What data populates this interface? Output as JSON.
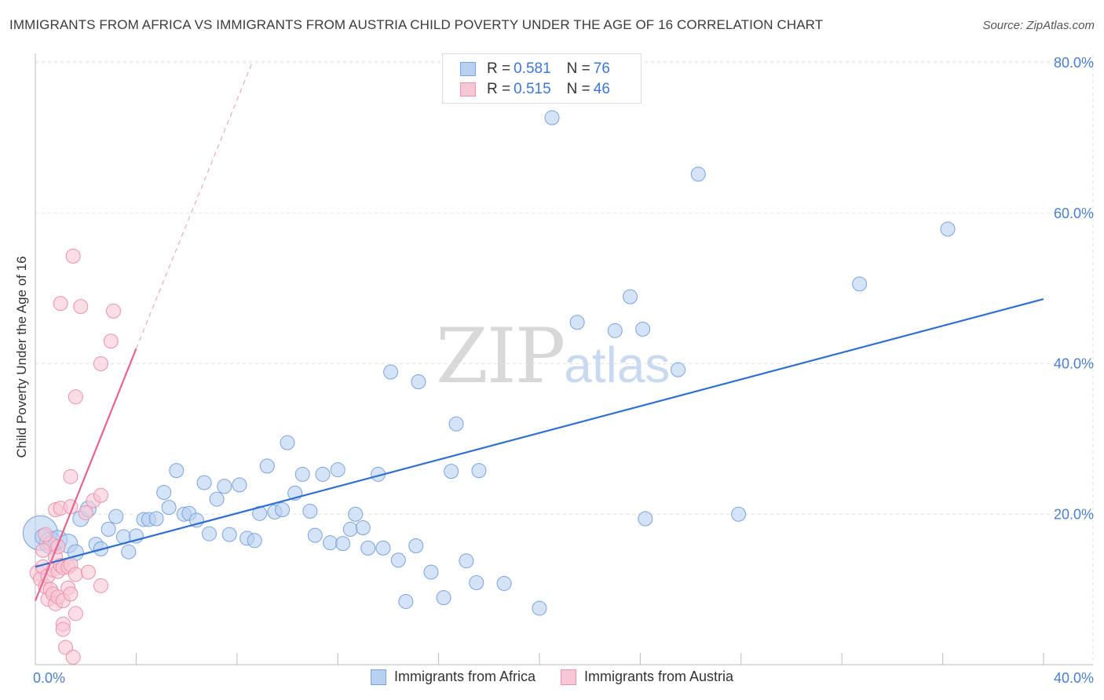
{
  "header": {
    "title": "IMMIGRANTS FROM AFRICA VS IMMIGRANTS FROM AUSTRIA CHILD POVERTY UNDER THE AGE OF 16 CORRELATION CHART",
    "source": "Source: ZipAtlas.com"
  },
  "watermark": {
    "zip": "ZIP",
    "atlas": "atlas"
  },
  "legend": {
    "africa": {
      "r_label": "R = ",
      "r_value": "0.581",
      "n_label": "N = ",
      "n_value": "76"
    },
    "austria": {
      "r_label": "R = ",
      "r_value": "0.515",
      "n_label": "N = ",
      "n_value": "46"
    }
  },
  "colors": {
    "africa_fill": "#b9d1f1",
    "africa_stroke": "#7aa3df",
    "africa_line": "#2f6fd0",
    "austria_fill": "#f8c7d6",
    "austria_stroke": "#ec92ae",
    "austria_line": "#e8638e",
    "tick": "#4a7fd4"
  },
  "chart_data": {
    "type": "scatter",
    "title": "IMMIGRANTS FROM AFRICA VS IMMIGRANTS FROM AUSTRIA CHILD POVERTY UNDER THE AGE OF 16 CORRELATION CHART",
    "xlabel": "",
    "ylabel": "Child Poverty Under the Age of 16",
    "xlim": [
      0,
      42
    ],
    "ylim": [
      0,
      83
    ],
    "x_ticks": [
      {
        "value": 0,
        "label": "0.0%"
      },
      {
        "value": 40,
        "label": "40.0%"
      }
    ],
    "y_ticks": [
      {
        "value": 20,
        "label": "20.0%"
      },
      {
        "value": 40,
        "label": "40.0%"
      },
      {
        "value": 60,
        "label": "60.0%"
      },
      {
        "value": 80,
        "label": "80.0%"
      }
    ],
    "grid": true,
    "series": [
      {
        "name": "Immigrants from Africa",
        "trend": {
          "x0": 0,
          "y0": 13.0,
          "x1": 40,
          "y1": 48.6,
          "dashed_extension": false
        },
        "points": [
          [
            0.2,
            17.5,
            22
          ],
          [
            0.6,
            16.2,
            14
          ],
          [
            0.9,
            16.6,
            12
          ],
          [
            1.3,
            16.1,
            12
          ],
          [
            1.6,
            14.9,
            10
          ],
          [
            1.8,
            19.4,
            10
          ],
          [
            2.1,
            20.7,
            10
          ],
          [
            2.4,
            16.0,
            9
          ],
          [
            2.6,
            15.4,
            9
          ],
          [
            3.2,
            19.7,
            9
          ],
          [
            2.9,
            18.0,
            9
          ],
          [
            3.5,
            17.0,
            9
          ],
          [
            3.7,
            15.0,
            9
          ],
          [
            4.0,
            17.1,
            9
          ],
          [
            4.3,
            19.3,
            9
          ],
          [
            4.5,
            19.3,
            9
          ],
          [
            4.8,
            19.4,
            9
          ],
          [
            5.1,
            22.9,
            9
          ],
          [
            5.3,
            20.9,
            9
          ],
          [
            5.6,
            25.8,
            9
          ],
          [
            5.9,
            20.0,
            9
          ],
          [
            6.1,
            20.1,
            9
          ],
          [
            6.4,
            19.2,
            9
          ],
          [
            6.7,
            24.2,
            9
          ],
          [
            6.9,
            17.4,
            9
          ],
          [
            7.2,
            22.0,
            9
          ],
          [
            7.5,
            23.7,
            9
          ],
          [
            7.7,
            17.3,
            9
          ],
          [
            8.1,
            23.9,
            9
          ],
          [
            8.4,
            16.8,
            9
          ],
          [
            8.7,
            16.5,
            9
          ],
          [
            8.9,
            20.1,
            9
          ],
          [
            9.2,
            26.4,
            9
          ],
          [
            9.5,
            20.3,
            9
          ],
          [
            9.8,
            20.6,
            9
          ],
          [
            10.0,
            29.5,
            9
          ],
          [
            10.3,
            22.8,
            9
          ],
          [
            10.6,
            25.3,
            9
          ],
          [
            10.9,
            20.4,
            9
          ],
          [
            11.1,
            17.2,
            9
          ],
          [
            11.4,
            25.3,
            9
          ],
          [
            11.7,
            16.2,
            9
          ],
          [
            12.0,
            25.9,
            9
          ],
          [
            12.2,
            16.1,
            9
          ],
          [
            12.5,
            18.0,
            9
          ],
          [
            12.7,
            20.0,
            9
          ],
          [
            13.0,
            18.2,
            9
          ],
          [
            13.2,
            15.5,
            9
          ],
          [
            13.6,
            25.3,
            9
          ],
          [
            13.8,
            15.5,
            9
          ],
          [
            14.1,
            38.9,
            9
          ],
          [
            14.7,
            8.4,
            9
          ],
          [
            14.4,
            13.9,
            9
          ],
          [
            15.1,
            15.8,
            9
          ],
          [
            15.2,
            37.6,
            9
          ],
          [
            15.7,
            12.3,
            9
          ],
          [
            16.2,
            8.9,
            9
          ],
          [
            16.5,
            25.7,
            9
          ],
          [
            16.7,
            32.0,
            9
          ],
          [
            17.6,
            25.8,
            9
          ],
          [
            17.1,
            13.8,
            9
          ],
          [
            17.5,
            10.9,
            9
          ],
          [
            18.6,
            10.8,
            9
          ],
          [
            20.0,
            7.5,
            9
          ],
          [
            20.5,
            72.7,
            9
          ],
          [
            21.5,
            45.5,
            9
          ],
          [
            23.0,
            44.4,
            9
          ],
          [
            23.6,
            48.9,
            9
          ],
          [
            24.1,
            44.6,
            9
          ],
          [
            24.2,
            19.4,
            9
          ],
          [
            25.5,
            39.2,
            9
          ],
          [
            26.3,
            65.2,
            9
          ],
          [
            27.9,
            20.0,
            9
          ],
          [
            32.7,
            50.6,
            9
          ],
          [
            36.2,
            57.9,
            9
          ],
          [
            0.3,
            17.0,
            10
          ]
        ]
      },
      {
        "name": "Immigrants from Austria",
        "trend": {
          "x0": 0,
          "y0": 8.5,
          "x1": 4.0,
          "y1": 42.0,
          "dashed_extension": true,
          "dash_x1": 8.6,
          "dash_y1": 80.0
        },
        "points": [
          [
            0.1,
            12.2,
            10
          ],
          [
            0.2,
            11.4,
            9
          ],
          [
            0.3,
            13.0,
            9
          ],
          [
            0.4,
            10.4,
            9
          ],
          [
            0.5,
            11.8,
            9
          ],
          [
            0.5,
            8.7,
            9
          ],
          [
            0.6,
            16.1,
            9
          ],
          [
            0.6,
            10.0,
            9
          ],
          [
            0.7,
            12.6,
            9
          ],
          [
            0.7,
            9.4,
            9
          ],
          [
            0.8,
            14.3,
            9
          ],
          [
            0.8,
            8.1,
            9
          ],
          [
            0.8,
            20.6,
            9
          ],
          [
            0.9,
            12.4,
            9
          ],
          [
            0.9,
            9.0,
            9
          ],
          [
            1.0,
            48.0,
            9
          ],
          [
            1.0,
            13.2,
            9
          ],
          [
            1.0,
            20.8,
            9
          ],
          [
            1.1,
            8.5,
            9
          ],
          [
            1.1,
            12.9,
            9
          ],
          [
            1.1,
            5.4,
            9
          ],
          [
            1.1,
            4.7,
            9
          ],
          [
            1.2,
            2.3,
            9
          ],
          [
            1.3,
            13.0,
            9
          ],
          [
            1.3,
            10.2,
            9
          ],
          [
            1.4,
            9.4,
            9
          ],
          [
            1.4,
            13.3,
            9
          ],
          [
            1.4,
            25.0,
            9
          ],
          [
            1.4,
            21.0,
            9
          ],
          [
            1.5,
            54.3,
            9
          ],
          [
            1.5,
            1.0,
            9
          ],
          [
            1.6,
            12.0,
            9
          ],
          [
            1.6,
            6.8,
            9
          ],
          [
            1.6,
            35.6,
            9
          ],
          [
            1.8,
            47.6,
            9
          ],
          [
            2.0,
            20.2,
            9
          ],
          [
            2.1,
            12.3,
            9
          ],
          [
            2.3,
            21.8,
            9
          ],
          [
            2.6,
            40.0,
            9
          ],
          [
            2.6,
            22.5,
            9
          ],
          [
            2.6,
            10.5,
            9
          ],
          [
            3.0,
            43.0,
            9
          ],
          [
            3.1,
            47.0,
            9
          ],
          [
            0.3,
            15.2,
            9
          ],
          [
            0.9,
            15.7,
            9
          ],
          [
            0.4,
            17.3,
            9
          ]
        ]
      }
    ]
  },
  "bottom_legend": {
    "africa_label": "Immigrants from Africa",
    "austria_label": "Immigrants from Austria"
  }
}
